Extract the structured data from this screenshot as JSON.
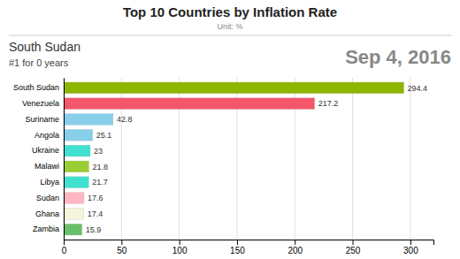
{
  "chart_data": {
    "type": "bar",
    "orientation": "horizontal",
    "title": "Top 10 Countries by Inflation Rate",
    "subtitle": "Unit: %",
    "annotations": [
      "South Sudan",
      "#1 for 0 years",
      "Sep 4, 2016"
    ],
    "categories": [
      "South Sudan",
      "Venezuela",
      "Suriname",
      "Angola",
      "Ukraine",
      "Malawi",
      "Libya",
      "Sudan",
      "Ghana",
      "Zambia"
    ],
    "values": [
      294.4,
      217.2,
      42.8,
      25.1,
      23.0,
      21.8,
      21.7,
      17.6,
      17.4,
      15.9
    ],
    "colors": [
      "#8db600",
      "#f4566a",
      "#87ceeb",
      "#87ceeb",
      "#40e0d0",
      "#9acd32",
      "#40e0d0",
      "#ffb6c1",
      "#f5f5dc",
      "#6abf69"
    ],
    "xlim": [
      0,
      320
    ],
    "xticks": [
      0,
      50,
      100,
      150,
      200,
      250,
      300
    ],
    "grid": true,
    "data_labels": true
  }
}
